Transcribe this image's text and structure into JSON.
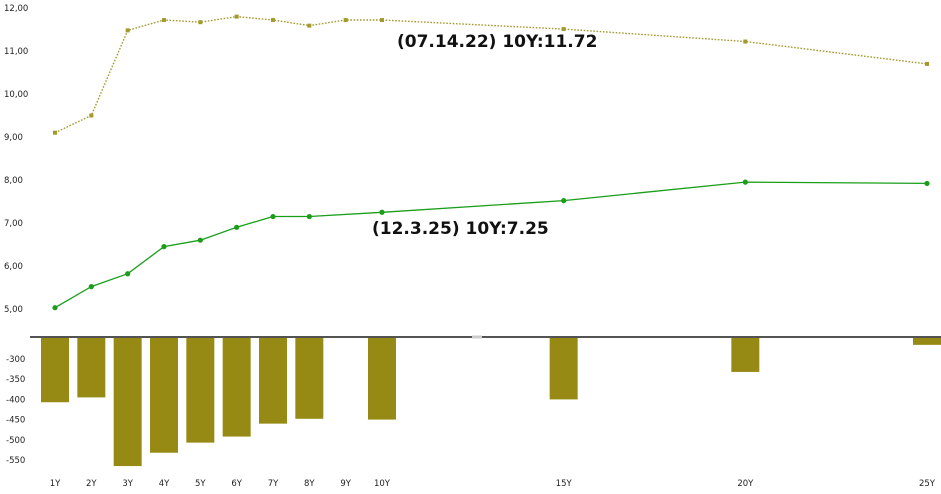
{
  "chart_data": [
    {
      "type": "line",
      "title": "",
      "xlabel": "",
      "ylabel": "",
      "x": [
        "1Y",
        "2Y",
        "3Y",
        "4Y",
        "5Y",
        "6Y",
        "7Y",
        "8Y",
        "9Y",
        "10Y",
        "15Y",
        "20Y",
        "25Y"
      ],
      "ylim": [
        4.8,
        12.0
      ],
      "yticks": [
        "5,00",
        "6,00",
        "7,00",
        "8,00",
        "9,00",
        "10,00",
        "11,00",
        "12,00"
      ],
      "grid": false,
      "series": [
        {
          "name": "",
          "annotation": "(07.14.22)   10Y:11.72",
          "color": "#a39a2e",
          "style": "dotted",
          "values": [
            9.1,
            9.5,
            11.48,
            11.72,
            11.67,
            11.8,
            11.72,
            11.59,
            11.72,
            11.72,
            11.51,
            11.22,
            10.7
          ]
        },
        {
          "name": "",
          "annotation": "(12.3.25)   10Y:7.25",
          "color": "#1a9e1a",
          "style": "solid",
          "values": [
            5.03,
            5.52,
            5.82,
            6.45,
            6.6,
            6.9,
            7.15,
            7.15,
            null,
            7.25,
            7.52,
            7.95,
            7.92
          ]
        }
      ]
    },
    {
      "type": "bar",
      "title": "",
      "xlabel": "",
      "ylabel": "",
      "color": "#978a14",
      "categories": [
        "1Y",
        "2Y",
        "3Y",
        "4Y",
        "5Y",
        "6Y",
        "7Y",
        "8Y",
        "9Y",
        "10Y",
        "15Y",
        "20Y",
        "25Y"
      ],
      "values": [
        -407,
        -395,
        -565,
        -532,
        -507,
        -492,
        -460,
        -448,
        null,
        -450,
        -400,
        -332,
        -265
      ],
      "ylim": [
        -570,
        -250
      ],
      "yticks": [
        "-300",
        "-350",
        "-400",
        "-450",
        "-500",
        "-550"
      ],
      "xtick_labels": [
        "1Y",
        "2Y",
        "3Y",
        "4Y",
        "5Y",
        "6Y",
        "7Y",
        "8Y",
        "9Y",
        "10Y",
        "15Y",
        "20Y",
        "25Y"
      ]
    }
  ]
}
